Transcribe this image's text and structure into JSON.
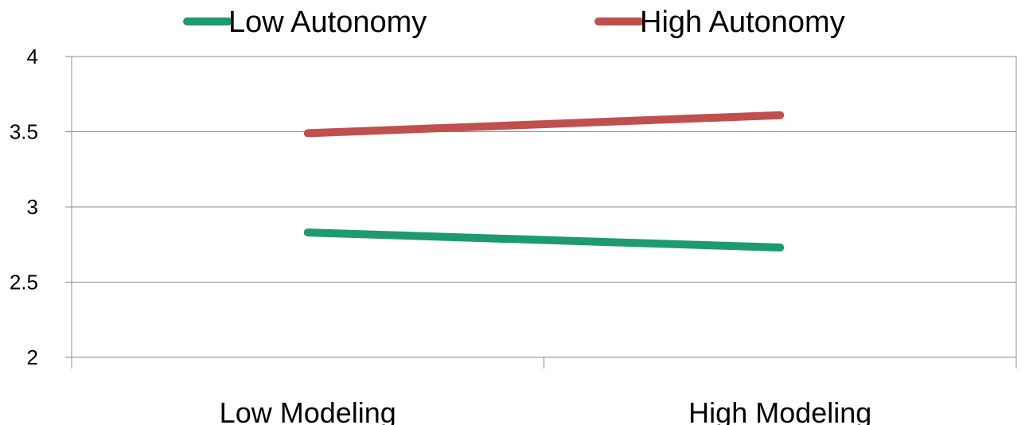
{
  "chart_data": {
    "type": "line",
    "categories": [
      "Low Modeling",
      "High Modeling"
    ],
    "series": [
      {
        "name": "Low Autonomy",
        "values": [
          2.83,
          2.73
        ],
        "color": "#1e9b6e"
      },
      {
        "name": "High Autonomy",
        "values": [
          3.49,
          3.61
        ],
        "color": "#c0504d"
      }
    ],
    "ylim": [
      2,
      4
    ],
    "yticks": [
      "2",
      "2.5",
      "3",
      "3.5",
      "4"
    ],
    "grid": true,
    "legend_position": "top"
  }
}
